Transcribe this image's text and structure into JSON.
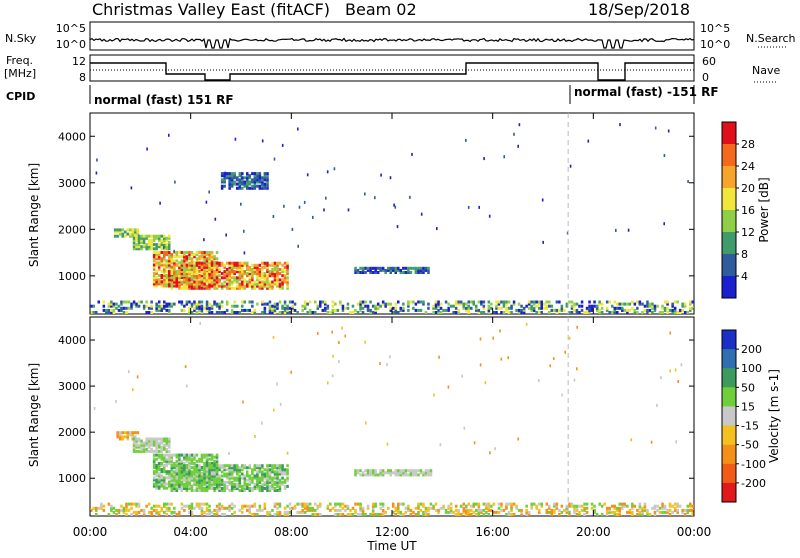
{
  "header": {
    "title": "Christmas Valley East (fitACF)",
    "beam": "Beam 02",
    "date": "18/Sep/2018"
  },
  "status_panels": {
    "nsky_label": "N.Sky",
    "nsky_ticks": [
      "10^5",
      "10^0"
    ],
    "nsearch_label": "N.Search",
    "nsearch_ticks": [
      "10^5",
      "10^0"
    ],
    "freq_label": "Freq.",
    "freq_unit": "[MHz]",
    "freq_ticks": [
      "12",
      "8"
    ],
    "nave_label": "Nave",
    "nave_ticks": [
      "60",
      "0"
    ],
    "cpid_label": "CPID",
    "cpid_segments": [
      "normal (fast) 151 RF",
      "normal (fast) -151 RF"
    ]
  },
  "chart_data": [
    {
      "type": "heatmap",
      "name": "power-panel",
      "ylabel": "Slant Range [km]",
      "x_ticks": [
        "00:00",
        "04:00",
        "08:00",
        "12:00",
        "16:00",
        "20:00",
        "00:00"
      ],
      "y_ticks": [
        1000,
        2000,
        3000,
        4000
      ],
      "ylim": [
        180,
        4500
      ],
      "xlim_hours": [
        0,
        24
      ],
      "colorbar": {
        "label": "Power [dB]",
        "ticks": [
          "28",
          "24",
          "20",
          "16",
          "12",
          "8",
          "4"
        ],
        "colors": [
          "#e0101a",
          "#f46a1c",
          "#f7a52a",
          "#f1e63a",
          "#8fcf47",
          "#3f9b6a",
          "#2f5c9c",
          "#1a1fd0"
        ]
      },
      "regions": [
        {
          "t0": 0.95,
          "t1": 1.9,
          "r0": 1820,
          "r1": 1980,
          "value": "medium"
        },
        {
          "t0": 1.7,
          "t1": 3.2,
          "r0": 1550,
          "r1": 1850,
          "value": "medium"
        },
        {
          "t0": 2.5,
          "t1": 5.0,
          "r0": 750,
          "r1": 1500,
          "value": "high"
        },
        {
          "t0": 3.2,
          "t1": 7.8,
          "r0": 700,
          "r1": 1250,
          "value": "high"
        },
        {
          "t0": 10.5,
          "t1": 13.5,
          "r0": 1040,
          "r1": 1140,
          "value": "low"
        },
        {
          "t0": 5.2,
          "t1": 7.0,
          "r0": 2850,
          "r1": 3200,
          "value": "low"
        },
        {
          "t0": 0.0,
          "t1": 24.0,
          "r0": 180,
          "r1": 420,
          "value": "ground"
        }
      ]
    },
    {
      "type": "heatmap",
      "name": "velocity-panel",
      "xlabel": "Time UT",
      "ylabel": "Slant Range [km]",
      "x_ticks": [
        "00:00",
        "04:00",
        "08:00",
        "12:00",
        "16:00",
        "20:00",
        "00:00"
      ],
      "y_ticks": [
        1000,
        2000,
        3000,
        4000
      ],
      "ylim": [
        180,
        4500
      ],
      "xlim_hours": [
        0,
        24
      ],
      "colorbar": {
        "label": "Velocity [m s-1]",
        "ticks": [
          "200",
          "100",
          "50",
          "15",
          "-15",
          "-50",
          "-100",
          "-200"
        ],
        "colors": [
          "#1a2fc8",
          "#2f6fb0",
          "#3a9b5c",
          "#6ecf3b",
          "#c8c8c8",
          "#f4c020",
          "#f49018",
          "#f25a18",
          "#e01a1a"
        ]
      },
      "regions": [
        {
          "t0": 0.95,
          "t1": 1.9,
          "r0": 1820,
          "r1": 1980,
          "value": "orange"
        },
        {
          "t0": 1.7,
          "t1": 3.2,
          "r0": 1550,
          "r1": 1850,
          "value": "gray"
        },
        {
          "t0": 2.5,
          "t1": 5.0,
          "r0": 750,
          "r1": 1500,
          "value": "green"
        },
        {
          "t0": 3.2,
          "t1": 7.8,
          "r0": 700,
          "r1": 1250,
          "value": "green"
        },
        {
          "t0": 10.5,
          "t1": 13.5,
          "r0": 1040,
          "r1": 1140,
          "value": "gray"
        },
        {
          "t0": 0.0,
          "t1": 24.0,
          "r0": 180,
          "r1": 420,
          "value": "ground"
        }
      ]
    }
  ]
}
